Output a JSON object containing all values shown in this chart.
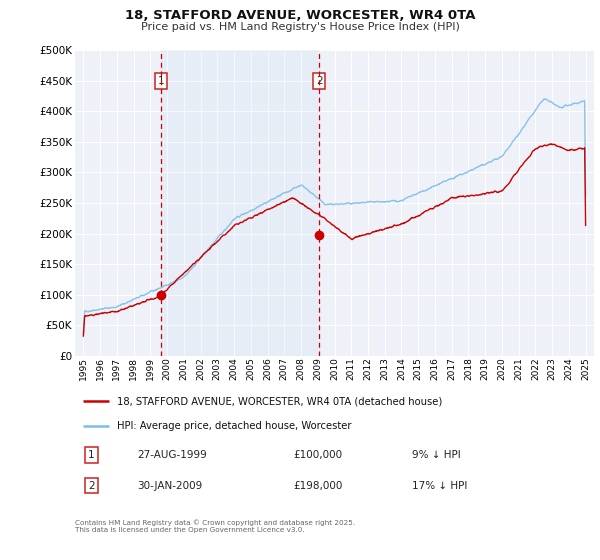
{
  "title": "18, STAFFORD AVENUE, WORCESTER, WR4 0TA",
  "subtitle": "Price paid vs. HM Land Registry's House Price Index (HPI)",
  "legend_entries": [
    "18, STAFFORD AVENUE, WORCESTER, WR4 0TA (detached house)",
    "HPI: Average price, detached house, Worcester"
  ],
  "property_color": "#cc0000",
  "hpi_color": "#7dbde8",
  "annotation1_date": "27-AUG-1999",
  "annotation1_price": "£100,000",
  "annotation1_hpi": "9% ↓ HPI",
  "annotation2_date": "30-JAN-2009",
  "annotation2_price": "£198,000",
  "annotation2_hpi": "17% ↓ HPI",
  "vline1_x": 1999.65,
  "vline2_x": 2009.08,
  "point1_x": 1999.65,
  "point1_y": 100000,
  "point2_x": 2009.08,
  "point2_y": 198000,
  "ylim": [
    0,
    500000
  ],
  "yticks": [
    0,
    50000,
    100000,
    150000,
    200000,
    250000,
    300000,
    350000,
    400000,
    450000,
    500000
  ],
  "xlim": [
    1994.5,
    2025.5
  ],
  "plot_bg_color": "#eef2f8",
  "grid_color": "#ffffff",
  "footer": "Contains HM Land Registry data © Crown copyright and database right 2025.\nThis data is licensed under the Open Government Licence v3.0."
}
